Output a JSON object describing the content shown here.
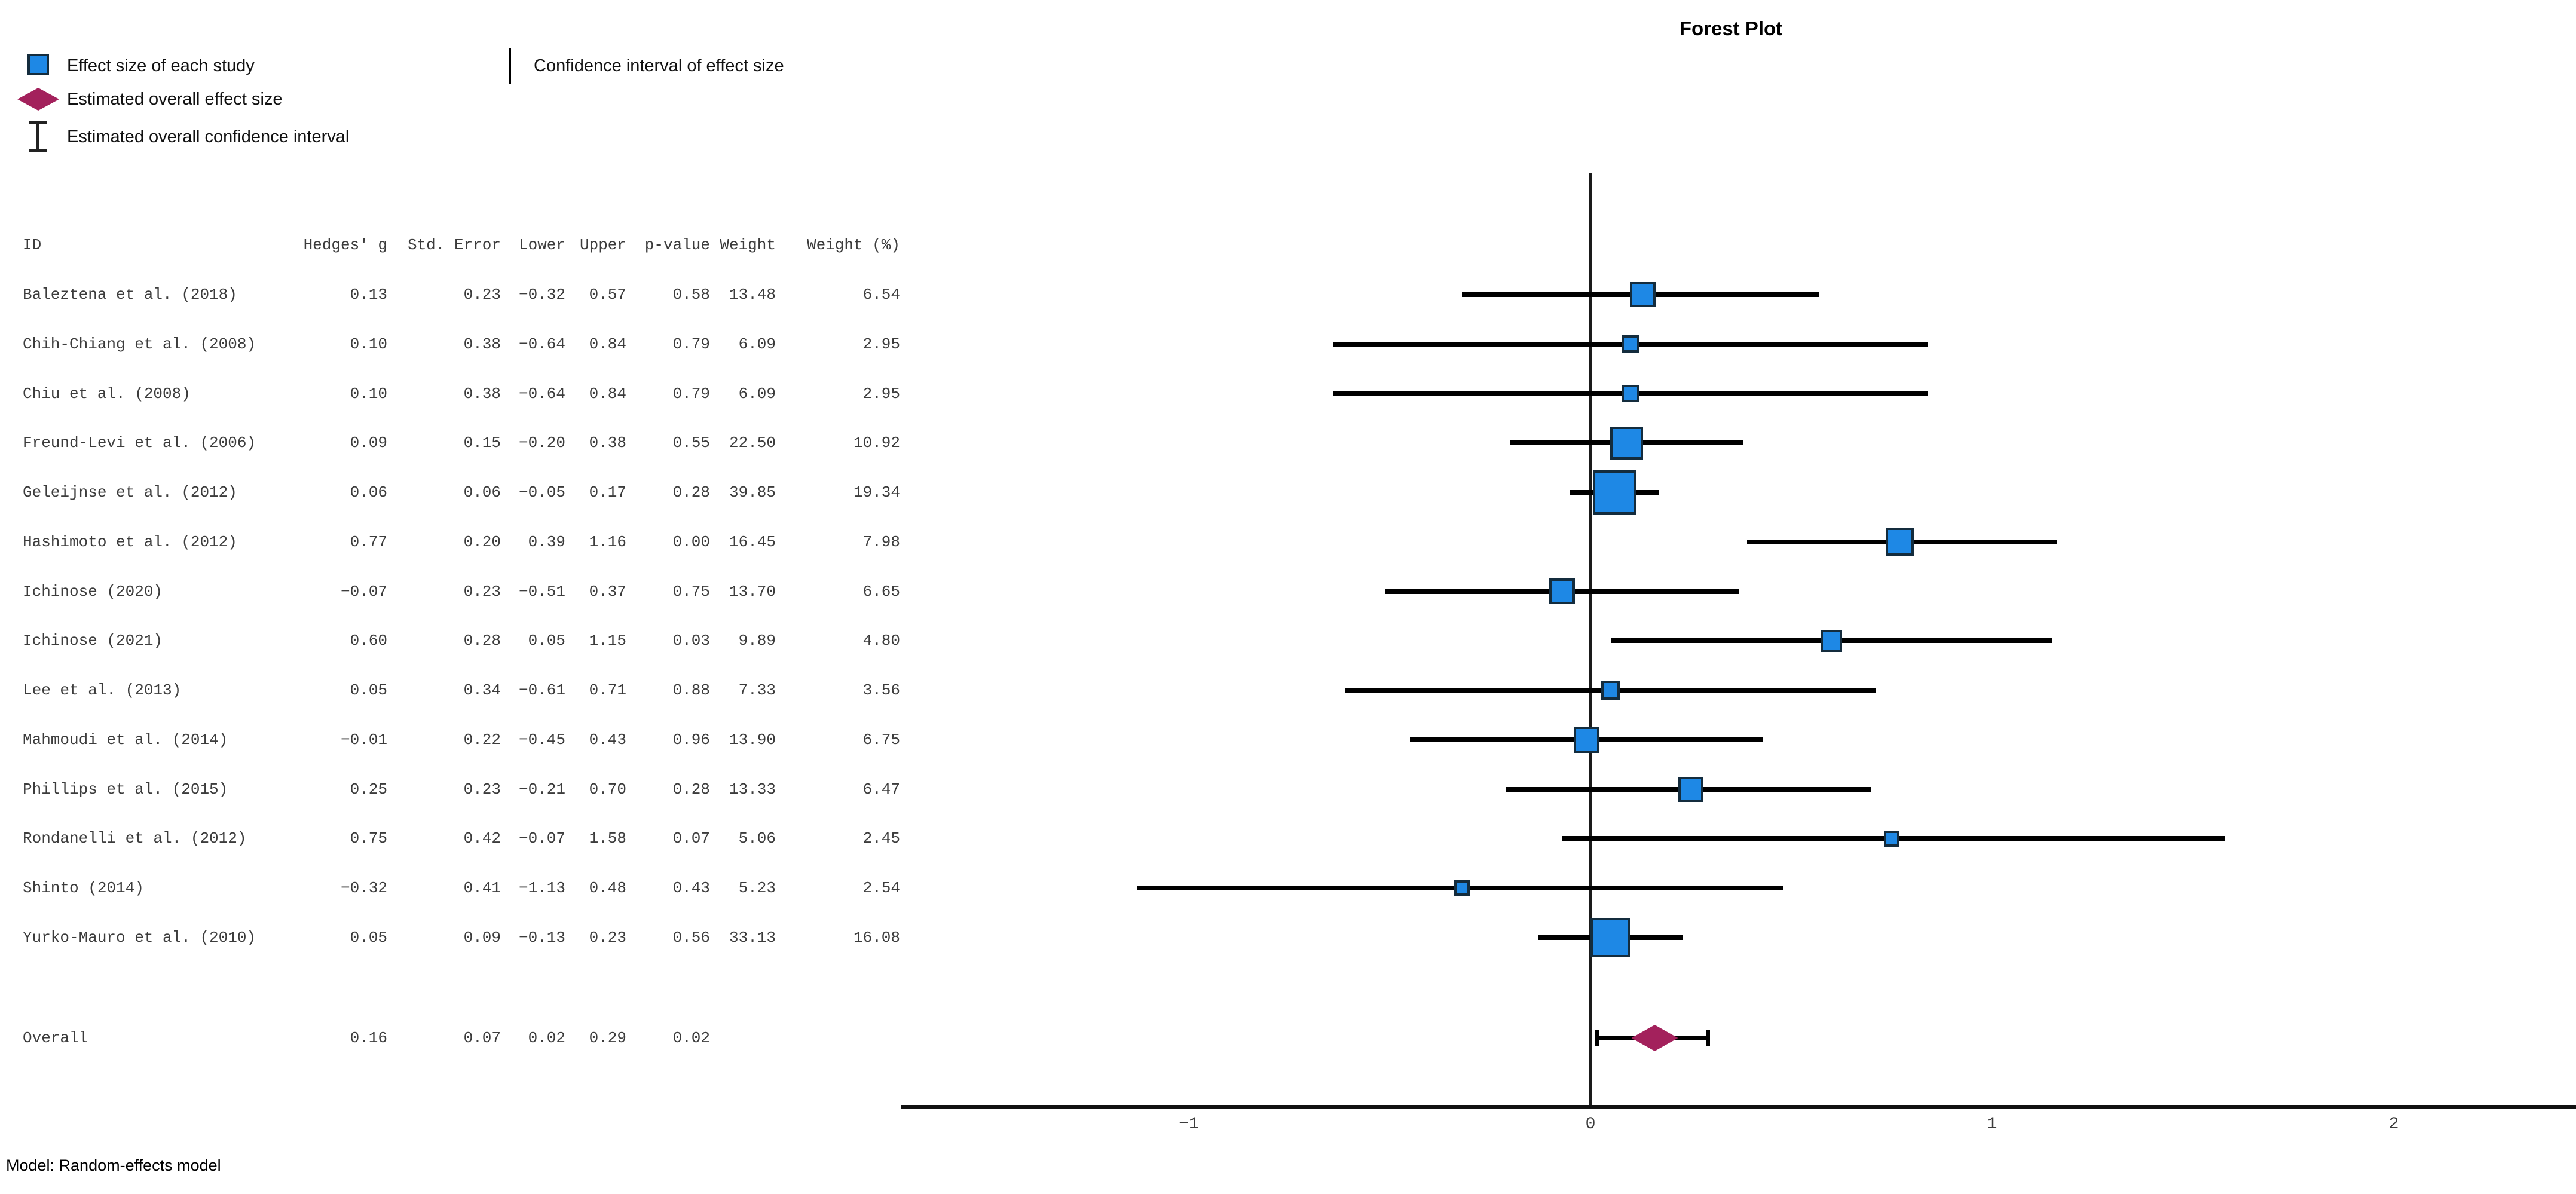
{
  "title": "Forest Plot",
  "model_note": "Model: Random-effects model",
  "legend": {
    "effect_size": "Effect size of each study",
    "ci": "Confidence interval of effect size",
    "overall_effect": "Estimated overall effect size",
    "overall_ci": "Estimated overall confidence interval"
  },
  "table": {
    "headers": {
      "id": "ID",
      "g": "Hedges' g",
      "se": "Std. Error",
      "lower": "Lower",
      "upper": "Upper",
      "p": "p-value",
      "weight": "Weight",
      "weight_pct": "Weight (%)"
    }
  },
  "chart_data": {
    "type": "forest",
    "title": "Forest Plot",
    "xlabel": "",
    "xlim": [
      -1.72,
      2.45
    ],
    "x_ticks": [
      {
        "value": -1,
        "label": "−1"
      },
      {
        "value": 0,
        "label": "0"
      },
      {
        "value": 1,
        "label": "1"
      },
      {
        "value": 2,
        "label": "2"
      }
    ],
    "studies": [
      {
        "id": "Baleztena et al. (2018)",
        "g": "0.13",
        "se": "0.23",
        "lower": "−0.32",
        "upper": "0.57",
        "p": "0.58",
        "weight": "13.48",
        "weight_pct": "6.54"
      },
      {
        "id": "Chih-Chiang et al. (2008)",
        "g": "0.10",
        "se": "0.38",
        "lower": "−0.64",
        "upper": "0.84",
        "p": "0.79",
        "weight": "6.09",
        "weight_pct": "2.95"
      },
      {
        "id": "Chiu et al. (2008)",
        "g": "0.10",
        "se": "0.38",
        "lower": "−0.64",
        "upper": "0.84",
        "p": "0.79",
        "weight": "6.09",
        "weight_pct": "2.95"
      },
      {
        "id": "Freund-Levi et al. (2006)",
        "g": "0.09",
        "se": "0.15",
        "lower": "−0.20",
        "upper": "0.38",
        "p": "0.55",
        "weight": "22.50",
        "weight_pct": "10.92"
      },
      {
        "id": "Geleijnse et al. (2012)",
        "g": "0.06",
        "se": "0.06",
        "lower": "−0.05",
        "upper": "0.17",
        "p": "0.28",
        "weight": "39.85",
        "weight_pct": "19.34"
      },
      {
        "id": "Hashimoto et al. (2012)",
        "g": "0.77",
        "se": "0.20",
        "lower": "0.39",
        "upper": "1.16",
        "p": "0.00",
        "weight": "16.45",
        "weight_pct": "7.98"
      },
      {
        "id": "Ichinose (2020)",
        "g": "−0.07",
        "se": "0.23",
        "lower": "−0.51",
        "upper": "0.37",
        "p": "0.75",
        "weight": "13.70",
        "weight_pct": "6.65"
      },
      {
        "id": "Ichinose (2021)",
        "g": "0.60",
        "se": "0.28",
        "lower": "0.05",
        "upper": "1.15",
        "p": "0.03",
        "weight": "9.89",
        "weight_pct": "4.80"
      },
      {
        "id": "Lee et al. (2013)",
        "g": "0.05",
        "se": "0.34",
        "lower": "−0.61",
        "upper": "0.71",
        "p": "0.88",
        "weight": "7.33",
        "weight_pct": "3.56"
      },
      {
        "id": "Mahmoudi et al. (2014)",
        "g": "−0.01",
        "se": "0.22",
        "lower": "−0.45",
        "upper": "0.43",
        "p": "0.96",
        "weight": "13.90",
        "weight_pct": "6.75"
      },
      {
        "id": "Phillips et al. (2015)",
        "g": "0.25",
        "se": "0.23",
        "lower": "−0.21",
        "upper": "0.70",
        "p": "0.28",
        "weight": "13.33",
        "weight_pct": "6.47"
      },
      {
        "id": "Rondanelli et al. (2012)",
        "g": "0.75",
        "se": "0.42",
        "lower": "−0.07",
        "upper": "1.58",
        "p": "0.07",
        "weight": "5.06",
        "weight_pct": "2.45"
      },
      {
        "id": "Shinto (2014)",
        "g": "−0.32",
        "se": "0.41",
        "lower": "−1.13",
        "upper": "0.48",
        "p": "0.43",
        "weight": "5.23",
        "weight_pct": "2.54"
      },
      {
        "id": "Yurko-Mauro et al. (2010)",
        "g": "0.05",
        "se": "0.09",
        "lower": "−0.13",
        "upper": "0.23",
        "p": "0.56",
        "weight": "33.13",
        "weight_pct": "16.08"
      }
    ],
    "overall": {
      "id": "Overall",
      "g": "0.16",
      "se": "0.07",
      "lower": "0.02",
      "upper": "0.29",
      "p": "0.02",
      "weight": "",
      "weight_pct": ""
    },
    "legend_position": "top-left",
    "grid": false
  },
  "colors": {
    "effect_square_fill": "#1E88E5",
    "effect_square_border": "#142C3D",
    "overall_diamond": "#A3215C",
    "line": "#000000"
  }
}
